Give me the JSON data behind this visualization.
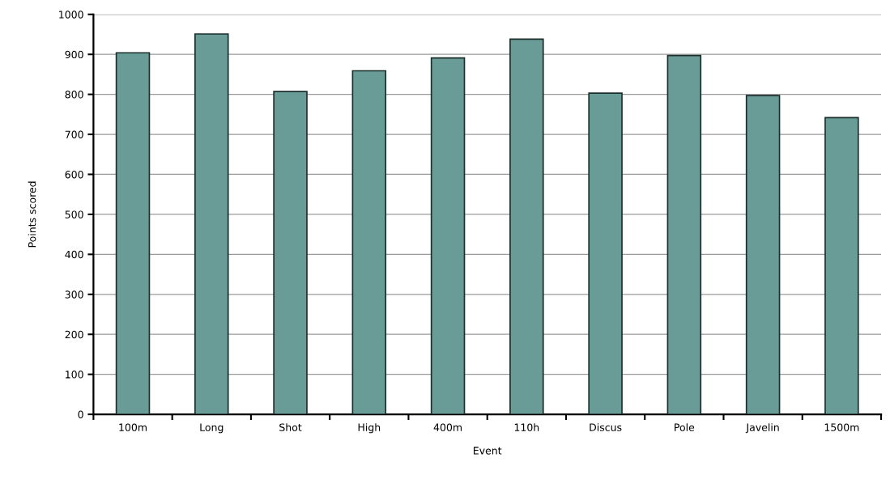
{
  "chart_data": {
    "type": "bar",
    "xlabel": "Event",
    "ylabel": "Points scored",
    "categories": [
      "100m",
      "Long",
      "Shot",
      "High",
      "400m",
      "110h",
      "Discus",
      "Pole",
      "Javelin",
      "1500m"
    ],
    "values": [
      904,
      951,
      807,
      859,
      891,
      938,
      803,
      897,
      797,
      742
    ],
    "color": "#6a9c97",
    "ylim": [
      0,
      1000
    ],
    "yticks": [
      0,
      100,
      200,
      300,
      400,
      500,
      600,
      700,
      800,
      900,
      1000
    ],
    "grid": "y"
  }
}
